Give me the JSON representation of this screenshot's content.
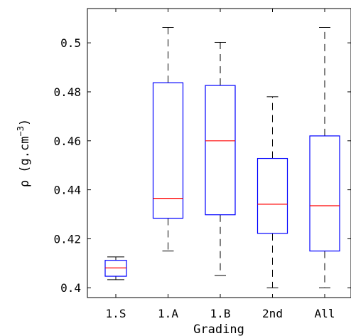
{
  "chart_data": {
    "type": "box",
    "title": "",
    "xlabel": "Grading",
    "ylabel": "ρ (g.cm",
    "ylabel_sup": "−3",
    "ylabel_close": ")",
    "ylim": [
      0.396,
      0.514
    ],
    "yticks": [
      0.4,
      0.42,
      0.44,
      0.46,
      0.48,
      0.5
    ],
    "ytick_labels": [
      "0.4",
      "0.42",
      "0.44",
      "0.46",
      "0.48",
      "0.5"
    ],
    "categories": [
      "1.S",
      "1.A",
      "1.B",
      "2nd",
      "All"
    ],
    "boxes": [
      {
        "label": "1.S",
        "whisker_low": 0.4033,
        "q1": 0.4047,
        "median": 0.4081,
        "q3": 0.4112,
        "whisker_high": 0.4126
      },
      {
        "label": "1.A",
        "whisker_low": 0.415,
        "q1": 0.4284,
        "median": 0.4365,
        "q3": 0.4837,
        "whisker_high": 0.5063
      },
      {
        "label": "1.B",
        "whisker_low": 0.405,
        "q1": 0.4298,
        "median": 0.46,
        "q3": 0.4826,
        "whisker_high": 0.5002
      },
      {
        "label": "2nd",
        "whisker_low": 0.4,
        "q1": 0.4222,
        "median": 0.4341,
        "q3": 0.4528,
        "whisker_high": 0.478
      },
      {
        "label": "All",
        "whisker_low": 0.4,
        "q1": 0.415,
        "median": 0.4335,
        "q3": 0.462,
        "whisker_high": 0.5063
      }
    ],
    "grid": false,
    "colors": {
      "box": "#0000ff",
      "median": "#ff0000",
      "whisker": "#000000"
    }
  }
}
